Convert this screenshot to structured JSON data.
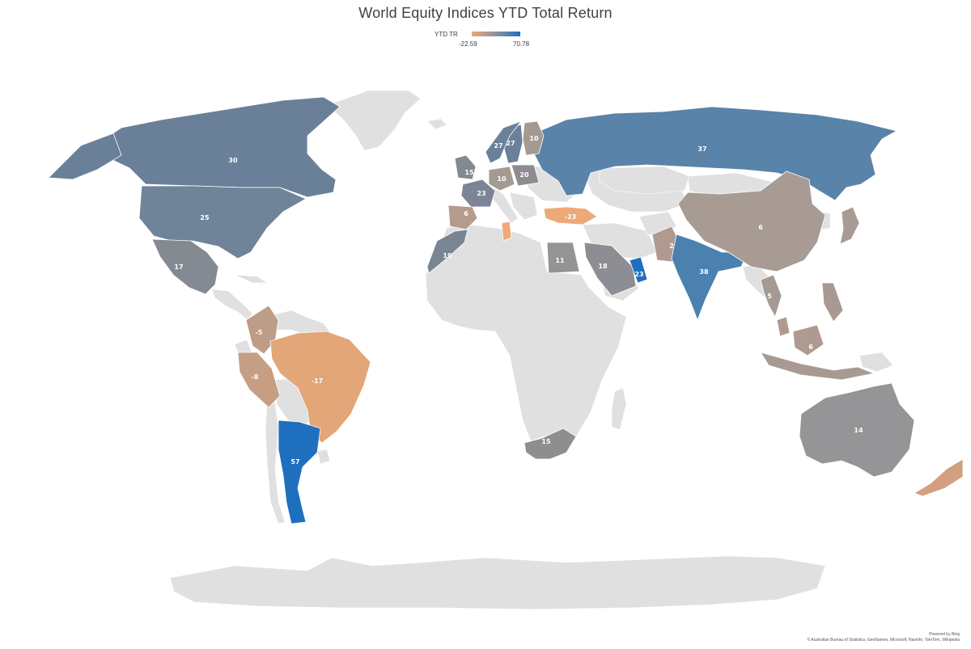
{
  "title": "World Equity Indices YTD Total Return",
  "legend": {
    "label": "YTD TR",
    "min": "-22.59",
    "max": "70.78"
  },
  "colors": {
    "negative": "#eda977",
    "neutral": "#9b9b9b",
    "positive": "#1f6fbf",
    "no_data": "#e0e0e0"
  },
  "footer": {
    "powered": "Powered by Bing",
    "attribution": "© Australian Bureau of Statistics, GeoNames, Microsoft, Navinfo, TomTom, Wikipedia"
  },
  "values": {
    "canada": "30",
    "usa": "25",
    "mexico": "17",
    "russia": "37",
    "finland": "10",
    "sweden": "27",
    "norway": "27",
    "uk": "15",
    "germany": "10",
    "poland": "20",
    "france": "23",
    "spain": "6",
    "turkey": "-23",
    "morocco": "19",
    "egypt": "11",
    "saudi": "18",
    "uae": "23",
    "pakistan": "2",
    "india": "38",
    "china": "6",
    "thailand": "5",
    "malaysia": "6",
    "colombia": "-5",
    "peru": "-8",
    "brazil": "-17",
    "argentina": "57",
    "south_africa": "15",
    "australia": "14"
  }
}
